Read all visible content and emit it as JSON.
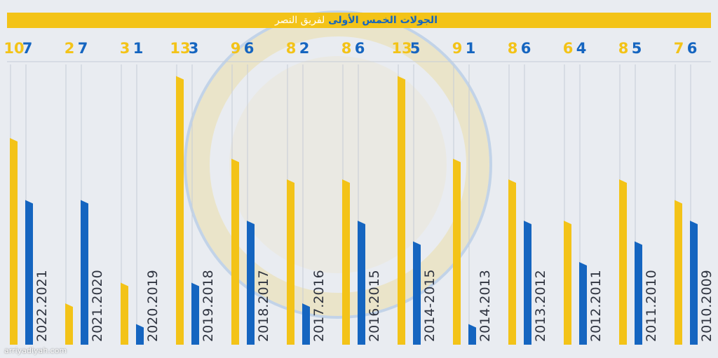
{
  "header": {
    "title_part1": "الجولات الخمس الأولى",
    "title_part2": "لفريق النصر"
  },
  "watermark": "arriyadiyah.com",
  "colors": {
    "background": "#e9ecf1",
    "yellow": "#f3c318",
    "yellow_dark": "#c99a00",
    "blue": "#1565c0",
    "blue_dark": "#0b3d86",
    "grid": "#c5ccd6",
    "season_text": "#2f3440"
  },
  "chart_data": {
    "type": "bar",
    "categories": [
      "2022.2021",
      "2021.2020",
      "2020.2019",
      "2019.2018",
      "2018.2017",
      "2017.2016",
      "2016.2015",
      "2014-2015",
      "2014.2013",
      "2013.2012",
      "2012.2011",
      "2011.2010",
      "2010.2009"
    ],
    "series": [
      {
        "color": "#f3c318",
        "values": [
          10,
          2,
          3,
          13,
          9,
          8,
          8,
          13,
          9,
          8,
          6,
          8,
          7
        ]
      },
      {
        "color": "#1565c0",
        "values": [
          7,
          7,
          1,
          3,
          6,
          2,
          6,
          5,
          1,
          6,
          4,
          5,
          6
        ]
      }
    ],
    "ylim": [
      0,
      15
    ],
    "grid": true,
    "legend": "none"
  }
}
